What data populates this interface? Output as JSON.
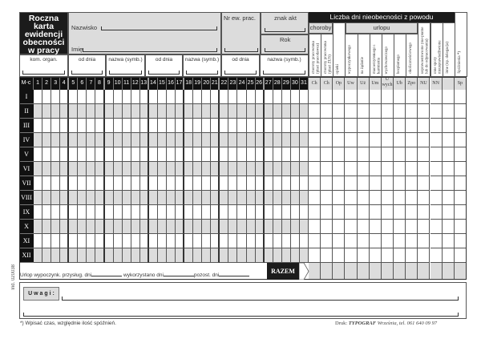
{
  "header": {
    "title": "Roczna karta ewidencji obecności w pracy",
    "surname_label": "Nazwisko",
    "name_label": "Imię",
    "employee_no_label": "Nr ew. prac.",
    "file_sign_label": "znak akt",
    "year_label": "Rok",
    "row2": [
      "kom. organ.",
      "od dnia",
      "nazwa (symb.)",
      "od dnia",
      "nazwa (symb.)",
      "od dnia",
      "nazwa (symb.)"
    ]
  },
  "absence": {
    "title": "Liczba dni nieobecności z powodu",
    "group_sickness": "choroby",
    "group_leave": "urlopu",
    "columns": [
      {
        "label": "choroby pracownika (płaci pracodawca)",
        "code": "Ch"
      },
      {
        "label": "choroby pracownika (płaci ZUS)",
        "code": "Ch"
      },
      {
        "label": "opieki",
        "code": "Op"
      },
      {
        "label": "wypoczynkowego",
        "code": "Uw"
      },
      {
        "label": "na żądanie",
        "code": "Uż"
      },
      {
        "label": "macierzyńskiego i karmienia",
        "code": "Um"
      },
      {
        "label": "wychowawczego",
        "code": "U wych"
      },
      {
        "label": "bezpłatnego",
        "code": "Ub"
      },
      {
        "label": "okolicznościowego",
        "code": "Zpo"
      },
      {
        "label": "usprawiedliwione (nie-płatne lub do odpracowania)",
        "code": "NU"
      },
      {
        "label": "inne spory nieusprawiedliwione",
        "code": "NN"
      },
      {
        "label": "inne (np. delegacja)",
        "code": ""
      },
      {
        "label": "Spóźnienia *)",
        "code": "Sp"
      }
    ]
  },
  "grid": {
    "month_header": "M-c",
    "days": [
      "1",
      "2",
      "3",
      "4",
      "5",
      "6",
      "7",
      "8",
      "9",
      "10",
      "11",
      "12",
      "13",
      "14",
      "15",
      "16",
      "17",
      "18",
      "19",
      "20",
      "21",
      "22",
      "23",
      "24",
      "25",
      "26",
      "27",
      "28",
      "29",
      "30",
      "31"
    ],
    "months": [
      "I",
      "II",
      "III",
      "IV",
      "V",
      "VI",
      "VII",
      "VIII",
      "IX",
      "X",
      "XI",
      "XII"
    ]
  },
  "footer": {
    "total_label": "RAZEM",
    "leave_due": "Urlop wypoczynk. przysług. dni",
    "leave_used": "wykorzystano dni",
    "leave_left": "pozost. dni",
    "remarks_label": "U w a g i :",
    "footnote": "*) Wpisać czas, względnie ilość spóźnień.",
    "printer_prefix": "Druk:",
    "printer_name": "TYPOGRAF",
    "printer_suffix": "Września, tel. 061 640 09 97",
    "form_index": "Ind. 020038"
  }
}
